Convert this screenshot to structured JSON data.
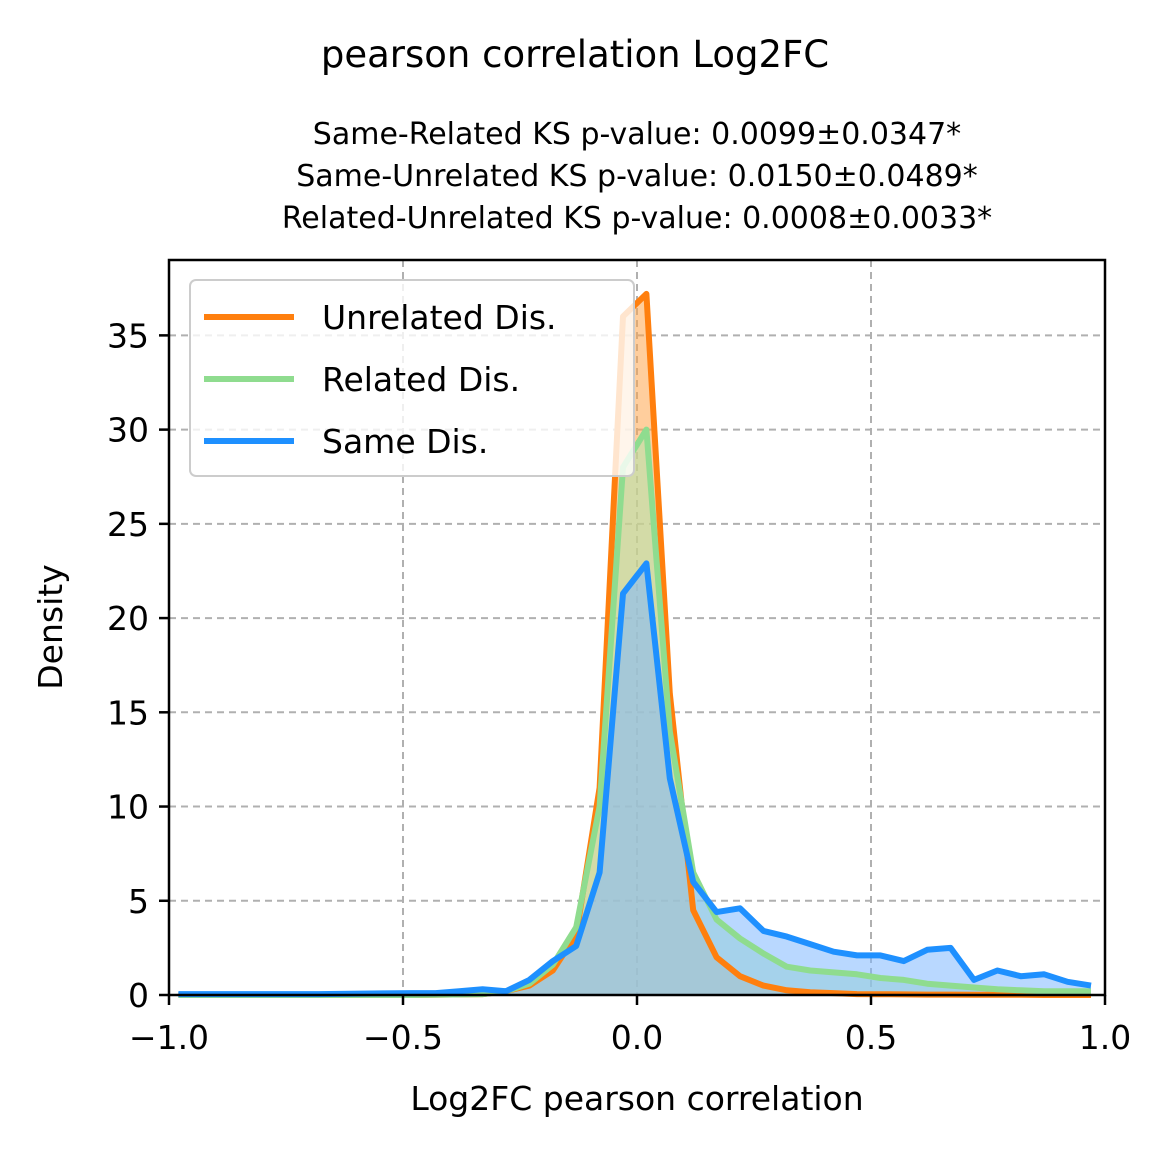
{
  "chart_data": {
    "type": "area",
    "title": "pearson correlation Log2FC",
    "subtitle_lines": [
      "Same-Related KS p-value: 0.0099±0.0347*",
      "Same-Unrelated KS p-value: 0.0150±0.0489*",
      "Related-Unrelated KS p-value: 0.0008±0.0033*"
    ],
    "xlabel": "Log2FC pearson correlation",
    "ylabel": "Density",
    "xlim": [
      -1.0,
      1.0
    ],
    "ylim": [
      0,
      39
    ],
    "xticks": [
      -1.0,
      -0.5,
      0.0,
      0.5,
      1.0
    ],
    "xtick_labels": [
      "−1.0",
      "−0.5",
      "0.0",
      "0.5",
      "1.0"
    ],
    "yticks": [
      0,
      5,
      10,
      15,
      20,
      25,
      30,
      35
    ],
    "ytick_labels": [
      "0",
      "5",
      "10",
      "15",
      "20",
      "25",
      "30",
      "35"
    ],
    "grid": true,
    "legend_position": "top-left",
    "series": [
      {
        "name": "Unrelated Dis.",
        "color": "#ff7f0e",
        "fill": "#ffa64d",
        "x": [
          -0.98,
          -0.68,
          -0.48,
          -0.33,
          -0.28,
          -0.23,
          -0.18,
          -0.13,
          -0.08,
          -0.03,
          0.02,
          0.07,
          0.12,
          0.17,
          0.22,
          0.27,
          0.32,
          0.37,
          0.42,
          0.47,
          0.52,
          0.57,
          0.62,
          0.67,
          0.72,
          0.77,
          0.82,
          0.87,
          0.92,
          0.97
        ],
        "y": [
          0,
          0,
          0,
          0.05,
          0.2,
          0.5,
          1.3,
          3.2,
          11,
          36,
          37.2,
          16,
          4.5,
          2,
          1,
          0.5,
          0.25,
          0.15,
          0.1,
          0.05,
          0.04,
          0.03,
          0.02,
          0.02,
          0.01,
          0.01,
          0.01,
          0,
          0,
          0
        ]
      },
      {
        "name": "Related Dis.",
        "color": "#8fdc8f",
        "fill": "#aee6ae",
        "x": [
          -0.98,
          -0.68,
          -0.48,
          -0.33,
          -0.28,
          -0.23,
          -0.18,
          -0.13,
          -0.08,
          -0.03,
          0.02,
          0.07,
          0.12,
          0.17,
          0.22,
          0.27,
          0.32,
          0.37,
          0.42,
          0.47,
          0.52,
          0.57,
          0.62,
          0.67,
          0.72,
          0.77,
          0.82,
          0.87,
          0.92,
          0.97
        ],
        "y": [
          0,
          0,
          0,
          0.05,
          0.2,
          0.6,
          1.6,
          3.6,
          10,
          28,
          30,
          14,
          6.5,
          4,
          3,
          2.2,
          1.5,
          1.3,
          1.2,
          1.1,
          0.9,
          0.8,
          0.6,
          0.5,
          0.4,
          0.3,
          0.25,
          0.2,
          0.2,
          0.2
        ]
      },
      {
        "name": "Same Dis.",
        "color": "#1e90ff",
        "fill": "#7fb8ff",
        "x": [
          -0.98,
          -0.68,
          -0.48,
          -0.43,
          -0.38,
          -0.33,
          -0.28,
          -0.23,
          -0.18,
          -0.13,
          -0.08,
          -0.03,
          0.02,
          0.07,
          0.12,
          0.17,
          0.22,
          0.27,
          0.32,
          0.37,
          0.42,
          0.47,
          0.52,
          0.57,
          0.62,
          0.67,
          0.72,
          0.77,
          0.82,
          0.87,
          0.92,
          0.97
        ],
        "y": [
          0.05,
          0.05,
          0.1,
          0.1,
          0.2,
          0.3,
          0.2,
          0.8,
          1.8,
          2.6,
          6.5,
          21.3,
          22.9,
          11.5,
          6,
          4.4,
          4.6,
          3.4,
          3.1,
          2.7,
          2.3,
          2.1,
          2.1,
          1.8,
          2.4,
          2.5,
          0.8,
          1.3,
          1.0,
          1.1,
          0.7,
          0.5
        ]
      }
    ]
  }
}
